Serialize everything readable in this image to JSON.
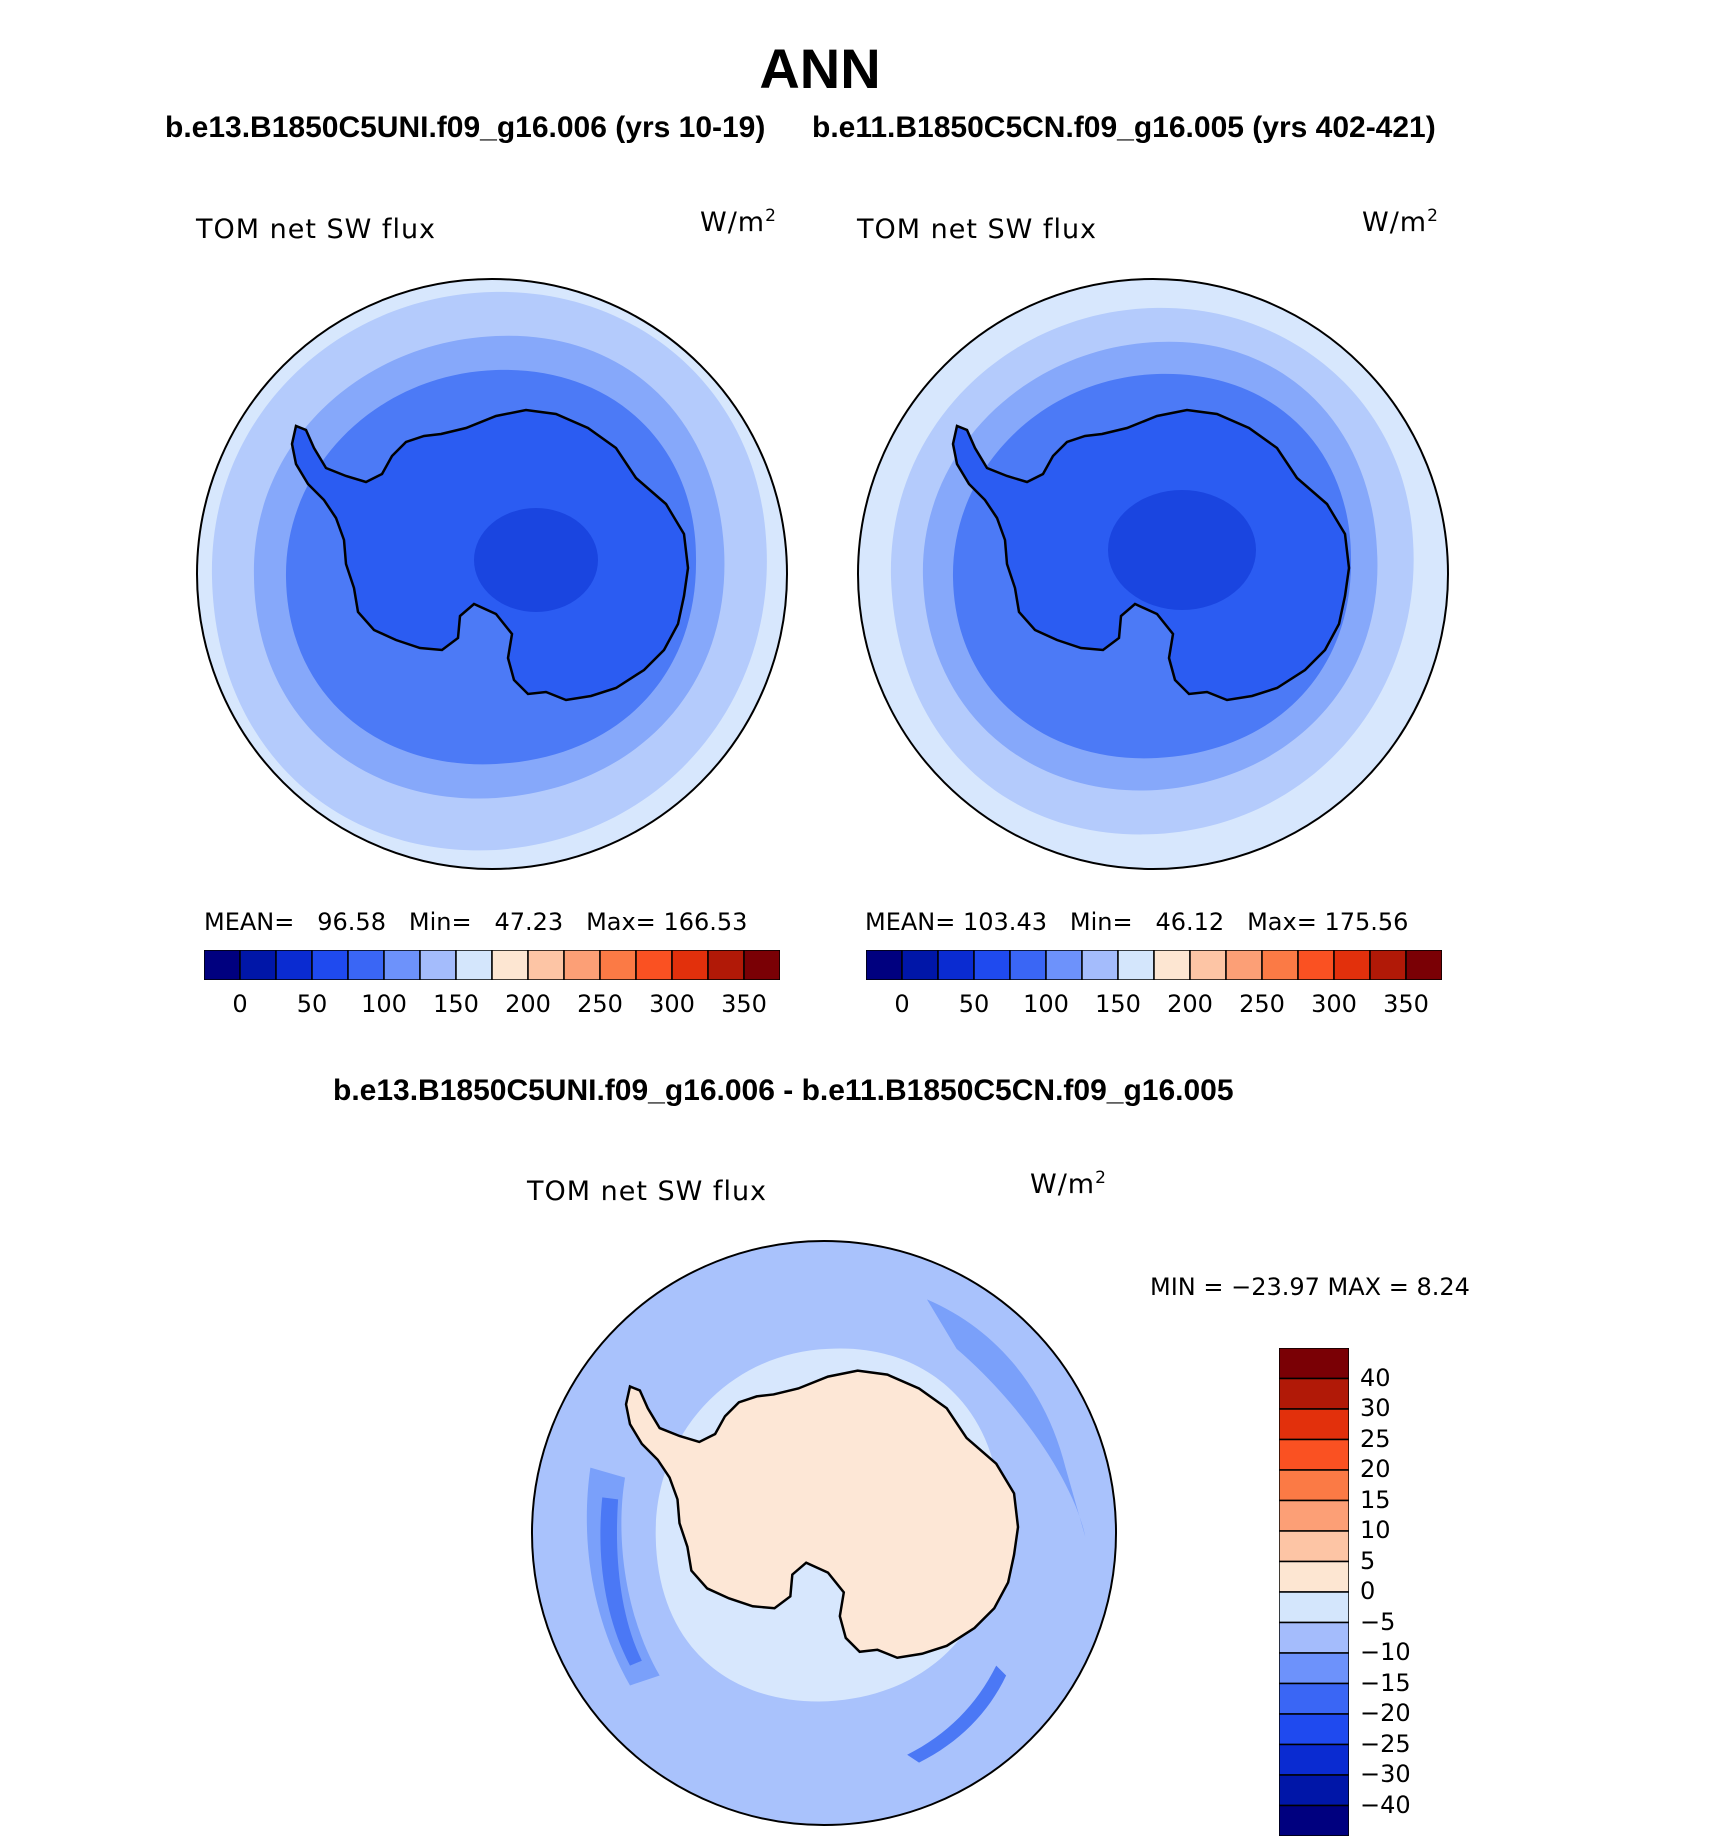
{
  "title": "ANN",
  "top_titles": {
    "left": "b.e13.B1850C5UNI.f09_g16.006 (yrs 10-19)",
    "right": "b.e11.B1850C5CN.f09_g16.005 (yrs 402-421)"
  },
  "diff_title": "b.e13.B1850C5UNI.f09_g16.006 - b.e11.B1850C5CN.f09_g16.005",
  "panels": [
    {
      "variable": "TOM net SW flux",
      "units_base": "W/m",
      "units_exp": "2",
      "stats": {
        "mean_label": "MEAN=",
        "mean": "96.58",
        "min_label": "Min=",
        "min": "47.23",
        "max_label": "Max=",
        "max": "166.53"
      }
    },
    {
      "variable": "TOM net SW flux",
      "units_base": "W/m",
      "units_exp": "2",
      "stats": {
        "mean_label": "MEAN=",
        "mean": "103.43",
        "min_label": "Min=",
        "min": "46.12",
        "max_label": "Max=",
        "max": "175.56"
      }
    }
  ],
  "diff_panel": {
    "variable": "TOM net SW flux",
    "units_base": "W/m",
    "units_exp": "2",
    "minmax": "MIN = −23.97 MAX =    8.24"
  },
  "abs_colorbar": {
    "colors": [
      "#00007f",
      "#0016a8",
      "#0a2bd1",
      "#1f4aef",
      "#3a66f5",
      "#6d92fb",
      "#a4bcfc",
      "#d4e6fc",
      "#fde6d2",
      "#fdc5a5",
      "#fc9f76",
      "#fb7a45",
      "#fa5122",
      "#e2300c",
      "#b11907",
      "#7a0005"
    ],
    "tick_labels": [
      "0",
      "50",
      "100",
      "150",
      "200",
      "250",
      "300",
      "350"
    ]
  },
  "diff_colorbar": {
    "colors": [
      "#00007f",
      "#0016a8",
      "#0a2bd1",
      "#1f4aef",
      "#3a66f5",
      "#6d92fb",
      "#a4bcfc",
      "#d4e6fc",
      "#fde6d2",
      "#fdc5a5",
      "#fc9f76",
      "#fb7a45",
      "#fa5122",
      "#e2300c",
      "#b11907",
      "#7a0005"
    ],
    "tick_labels": [
      "40",
      "30",
      "25",
      "20",
      "15",
      "10",
      "5",
      "0",
      "−5",
      "−10",
      "−15",
      "−20",
      "−25",
      "−30",
      "−40"
    ]
  },
  "map_colors": {
    "ring1": "#b4cbfc",
    "ring2": "#86a8fa",
    "ring3": "#4c7af6",
    "ice": "#2b5cf2",
    "ice_center": "#1a45e0",
    "light": "#d7e7fd",
    "diff_land": "#fde7d6",
    "diff_ring_light": "#d7e7fd",
    "diff_ring_mid": "#a9c2fc",
    "diff_ring_dark": "#7aa0fa",
    "diff_ring_deep": "#4b78f5",
    "outline": "#000000"
  }
}
